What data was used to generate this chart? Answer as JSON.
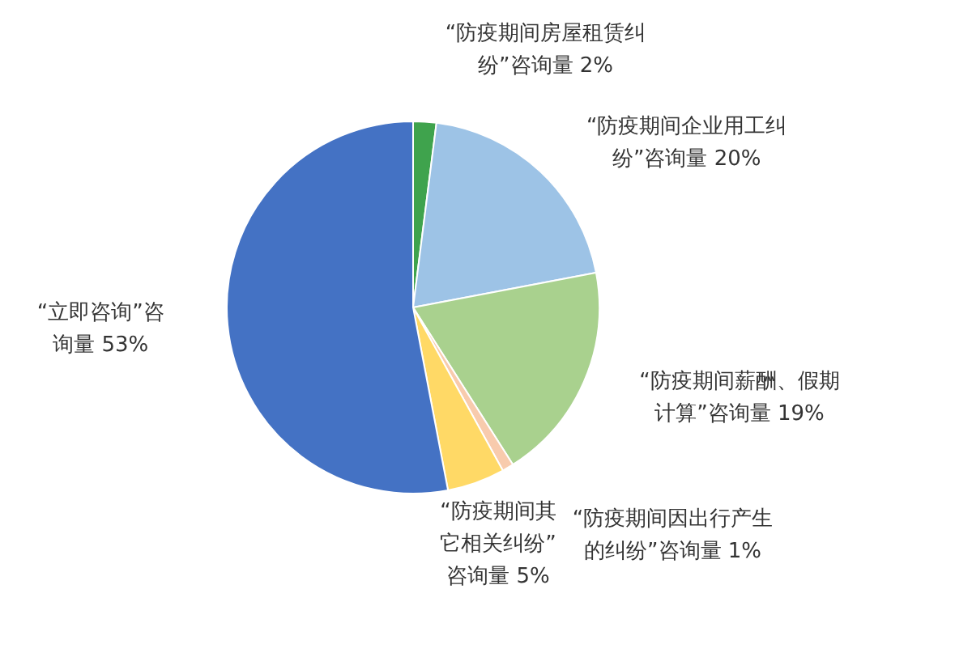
{
  "chart_data": {
    "type": "pie",
    "categories": [
      "“防疫期间房屋租赁纠纷”咨询量",
      "“防疫期间企业用工纠纷”咨询量",
      "“防疫期间薪酬、假期计算”咨询量",
      "“防疫期间因出行产生的纠纷”咨询量",
      "“防疫期间其它相关纠纷”咨询量",
      "“立即咨询”咨询量"
    ],
    "values": [
      2,
      20,
      19,
      1,
      5,
      53
    ],
    "value_labels": [
      "2%",
      "20%",
      "19%",
      "1%",
      "5%",
      "53%"
    ],
    "colors": [
      "#3fa34d",
      "#9dc3e6",
      "#a9d18e",
      "#f8cbad",
      "#ffd966",
      "#4472c4"
    ]
  }
}
